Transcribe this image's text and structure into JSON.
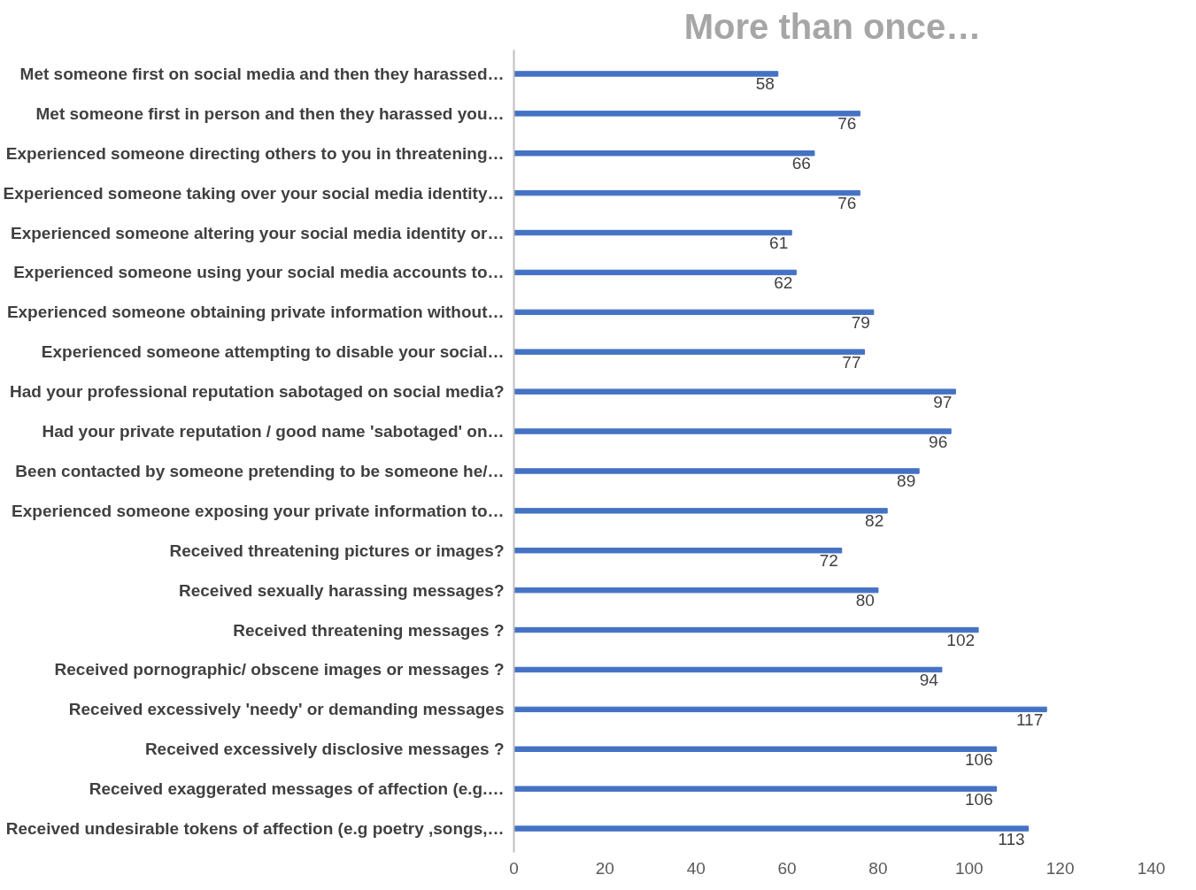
{
  "chart_data": {
    "type": "bar",
    "orientation": "horizontal",
    "title": "More than once…",
    "categories": [
      "Met someone first on social media and then they harassed…",
      "Met someone first in person and then they harassed you…",
      "Experienced someone directing others to you in threatening…",
      "Experienced someone taking over your social media identity…",
      "Experienced someone altering your social media identity or…",
      "Experienced someone using your social media accounts to…",
      "Experienced someone obtaining private information without…",
      "Experienced someone attempting to disable your social…",
      "Had your professional reputation sabotaged on social media?",
      "Had your private reputation / good name 'sabotaged' on…",
      "Been contacted by someone pretending to be someone he/…",
      "Experienced someone exposing your private information to…",
      "Received threatening pictures or images?",
      "Received sexually harassing messages?",
      "Received threatening messages ?",
      "Received pornographic/ obscene images or messages ?",
      "Received excessively 'needy' or demanding messages",
      "Received excessively disclosive messages ?",
      "Received exaggerated messages of affection (e.g.…",
      "Received undesirable tokens of affection (e.g poetry ,songs,…"
    ],
    "values": [
      58,
      76,
      66,
      76,
      61,
      62,
      79,
      77,
      97,
      96,
      89,
      82,
      72,
      80,
      102,
      94,
      117,
      106,
      106,
      113
    ],
    "color": "#4472c4",
    "xlim": [
      0,
      140
    ],
    "xticks": [
      0,
      20,
      40,
      60,
      80,
      100,
      120,
      140
    ],
    "data_labels": true,
    "grid": false
  }
}
